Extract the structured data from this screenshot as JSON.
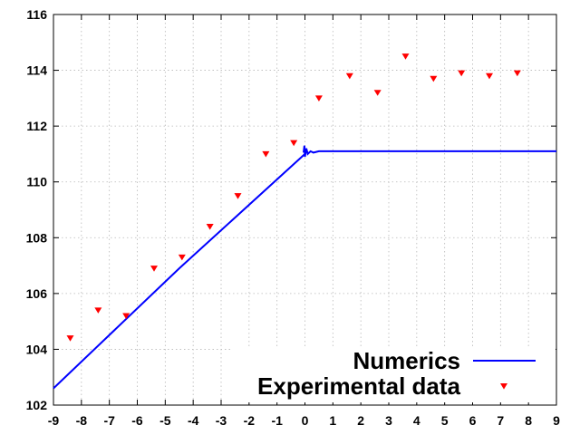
{
  "chart_data": {
    "type": "line",
    "title": "",
    "xlabel": "",
    "ylabel": "",
    "xlim": [
      -9,
      9
    ],
    "ylim": [
      102,
      116
    ],
    "xticks": [
      -9,
      -8,
      -7,
      -6,
      -5,
      -4,
      -3,
      -2,
      -1,
      0,
      1,
      2,
      3,
      4,
      5,
      6,
      7,
      8,
      9
    ],
    "yticks": [
      102,
      104,
      106,
      108,
      110,
      112,
      114,
      116
    ],
    "grid": true,
    "legend_position": "bottom-right",
    "series": [
      {
        "name": "Numerics",
        "style": "line",
        "color": "#0000ff",
        "points": [
          [
            -9,
            102.6
          ],
          [
            -4.5,
            106.9
          ],
          [
            0,
            111.0
          ],
          [
            -0.05,
            111.05
          ],
          [
            -0.02,
            111.3
          ],
          [
            0.0,
            110.9
          ],
          [
            0.05,
            111.2
          ],
          [
            0.1,
            111.0
          ],
          [
            0.2,
            111.1
          ],
          [
            0.3,
            111.05
          ],
          [
            0.5,
            111.1
          ],
          [
            9,
            111.1
          ]
        ]
      },
      {
        "name": "Experimental data",
        "style": "marker",
        "marker": "triangle-down",
        "color": "#ff0000",
        "points": [
          [
            -8.4,
            104.4
          ],
          [
            -7.4,
            105.4
          ],
          [
            -6.4,
            105.2
          ],
          [
            -5.4,
            106.9
          ],
          [
            -4.4,
            107.3
          ],
          [
            -3.4,
            108.4
          ],
          [
            -2.4,
            109.5
          ],
          [
            -1.4,
            111.0
          ],
          [
            -0.4,
            111.4
          ],
          [
            0.5,
            113.0
          ],
          [
            1.6,
            113.8
          ],
          [
            2.6,
            113.2
          ],
          [
            3.6,
            114.5
          ],
          [
            4.6,
            113.7
          ],
          [
            5.6,
            113.9
          ],
          [
            6.6,
            113.8
          ],
          [
            7.6,
            113.9
          ]
        ]
      }
    ]
  }
}
